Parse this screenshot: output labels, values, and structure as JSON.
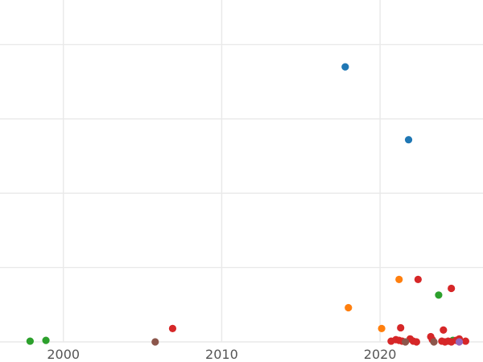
{
  "chart_data": {
    "type": "scatter",
    "title": "",
    "xlabel": "",
    "ylabel": "",
    "xlim": [
      1996,
      2026.5
    ],
    "ylim": [
      0,
      46
    ],
    "x_ticks": [
      2000,
      2010,
      2020
    ],
    "x_tick_labels": [
      "2000",
      "2010",
      "2020"
    ],
    "y_grid": [
      0,
      10,
      20,
      30,
      40
    ],
    "grid": true,
    "legend": "none",
    "series": [
      {
        "color": "#1f77b4",
        "points": [
          {
            "x": 2017.8,
            "y": 37
          },
          {
            "x": 2021.8,
            "y": 27.2
          }
        ]
      },
      {
        "color": "#ff7f0e",
        "points": [
          {
            "x": 2018.0,
            "y": 4.6
          },
          {
            "x": 2020.1,
            "y": 1.8
          },
          {
            "x": 2021.2,
            "y": 8.4
          }
        ]
      },
      {
        "color": "#2ca02c",
        "points": [
          {
            "x": 1997.9,
            "y": 0.1
          },
          {
            "x": 1998.9,
            "y": 0.2
          },
          {
            "x": 2023.7,
            "y": 6.3
          },
          {
            "x": 2024.6,
            "y": 0.2
          }
        ]
      },
      {
        "color": "#d62728",
        "points": [
          {
            "x": 2006.9,
            "y": 1.8
          },
          {
            "x": 2022.4,
            "y": 8.4
          },
          {
            "x": 2024.5,
            "y": 7.2
          },
          {
            "x": 2021.3,
            "y": 1.9
          },
          {
            "x": 2024.0,
            "y": 1.6
          },
          {
            "x": 2020.7,
            "y": 0.1
          },
          {
            "x": 2021.0,
            "y": 0.3
          },
          {
            "x": 2021.2,
            "y": 0.2
          },
          {
            "x": 2021.4,
            "y": 0.1
          },
          {
            "x": 2021.9,
            "y": 0.4
          },
          {
            "x": 2022.1,
            "y": 0.1
          },
          {
            "x": 2022.3,
            "y": 0.0
          },
          {
            "x": 2023.2,
            "y": 0.7
          },
          {
            "x": 2023.3,
            "y": 0.3
          },
          {
            "x": 2023.9,
            "y": 0.1
          },
          {
            "x": 2024.1,
            "y": 0.0
          },
          {
            "x": 2024.3,
            "y": 0.1
          },
          {
            "x": 2024.5,
            "y": 0.0
          },
          {
            "x": 2024.8,
            "y": 0.2
          },
          {
            "x": 2025.0,
            "y": 0.4
          },
          {
            "x": 2025.4,
            "y": 0.1
          }
        ]
      },
      {
        "color": "#9467bd",
        "points": [
          {
            "x": 2025.0,
            "y": 0.0
          }
        ]
      },
      {
        "color": "#8c564b",
        "points": [
          {
            "x": 2005.8,
            "y": 0.0
          },
          {
            "x": 2021.6,
            "y": 0.0
          },
          {
            "x": 2023.4,
            "y": 0.0
          }
        ]
      }
    ]
  }
}
